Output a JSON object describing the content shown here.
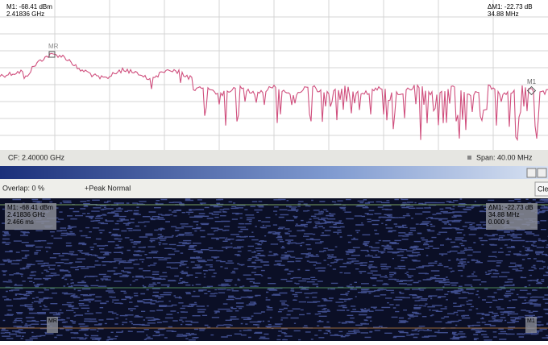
{
  "spectrum": {
    "marker_readout": [
      "M1: -68.41 dBm",
      "2.41836 GHz"
    ],
    "delta_readout": [
      "ΔM1: -22.73 dB",
      "34.88 MHz"
    ],
    "marker_labels": [
      "MR",
      "M1"
    ]
  },
  "status_bar": {
    "center_freq": "CF: 2.40000 GHz",
    "span": "Span: 40.00 MHz"
  },
  "toolbar": {
    "overlap": "Overlap: 0 %",
    "detector": "+Peak Normal",
    "clear_button": "Cle"
  },
  "waterfall": {
    "marker_readout": [
      "M1: -68.41 dBm",
      "2.41836 GHz",
      "2.466 ms"
    ],
    "delta_readout": [
      "ΔM1: -22.73 dB",
      "34.88 MHz",
      "0.000 s"
    ],
    "marker_labels": [
      "MR",
      "M1"
    ]
  }
}
